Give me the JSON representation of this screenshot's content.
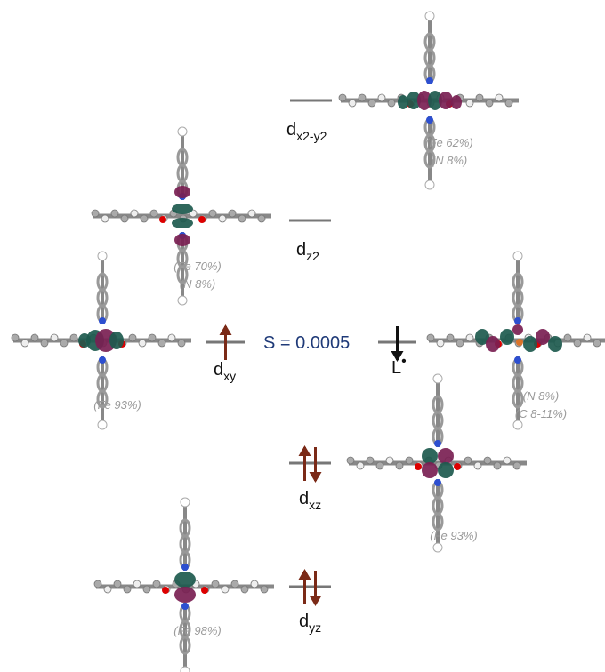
{
  "levels": [
    {
      "name": "d",
      "sub": "x2-y2",
      "composition": [
        "(Fe 62%)",
        "(N 8%)"
      ]
    },
    {
      "name": "d",
      "sub": "z2",
      "composition": [
        "(Fe 70%)",
        "(N 8%)"
      ]
    },
    {
      "name": "d",
      "sub": "xy",
      "composition": [
        "(Fe 93%)"
      ]
    },
    {
      "name": "L",
      "sup": "•",
      "composition": [
        "(N 8%)",
        "(C 8-11%)"
      ]
    },
    {
      "name": "d",
      "sub": "xz",
      "composition": [
        "(Fe 93%)"
      ]
    },
    {
      "name": "d",
      "sub": "yz",
      "composition": [
        "(Fe 98%)"
      ]
    }
  ],
  "overlap": "S = 0.0005"
}
